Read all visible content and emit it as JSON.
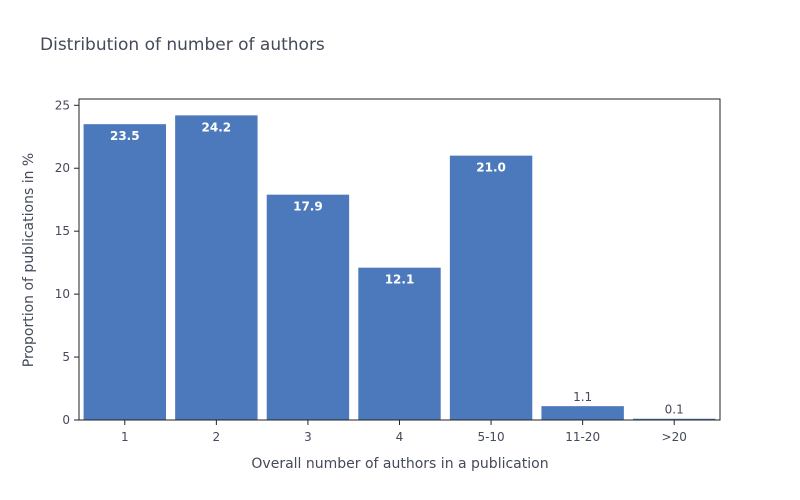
{
  "chart_data": {
    "type": "bar",
    "title": "Distribution of number of authors",
    "xlabel": "Overall number of authors in a publication",
    "ylabel": "Proportion of publications in %",
    "categories": [
      "1",
      "2",
      "3",
      "4",
      "5-10",
      "11-20",
      ">20"
    ],
    "values": [
      23.5,
      24.2,
      17.9,
      12.1,
      21.0,
      1.1,
      0.1
    ],
    "data_labels": [
      "23.5",
      "24.2",
      "17.9",
      "12.1",
      "21.0",
      "1.1",
      "0.1"
    ],
    "ylim": [
      0,
      25.5
    ],
    "yticks": [
      0,
      5,
      10,
      15,
      20,
      25
    ],
    "bar_color": "#4c78bc",
    "grid": false
  }
}
